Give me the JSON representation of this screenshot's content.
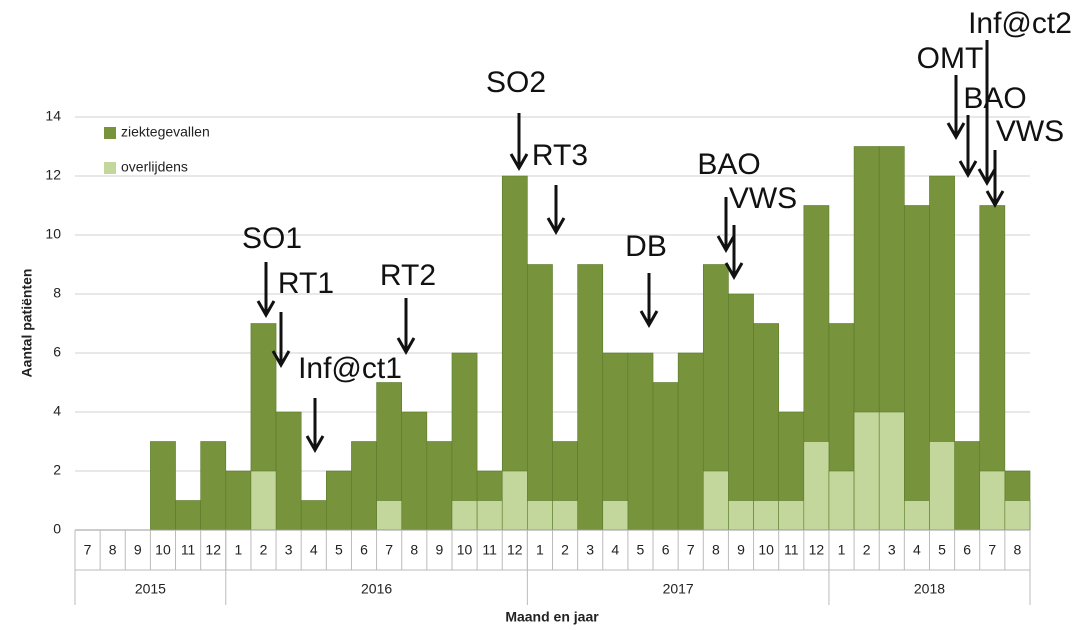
{
  "chart_data": {
    "type": "bar",
    "y_label": "Aantal patiënten",
    "x_label": "Maand en jaar",
    "categories": [
      "7",
      "8",
      "9",
      "10",
      "11",
      "12",
      "1",
      "2",
      "3",
      "4",
      "5",
      "6",
      "7",
      "8",
      "9",
      "10",
      "11",
      "12",
      "1",
      "2",
      "3",
      "4",
      "5",
      "6",
      "7",
      "8",
      "9",
      "10",
      "11",
      "12",
      "1",
      "2",
      "3",
      "4",
      "5",
      "6",
      "7",
      "8"
    ],
    "x_groups": [
      "2015",
      "2016",
      "2017",
      "2018"
    ],
    "series": [
      {
        "name": "ziektegevallen",
        "color": "#77933c",
        "values": [
          0,
          0,
          0,
          3,
          1,
          3,
          2,
          7,
          4,
          1,
          2,
          3,
          5,
          4,
          3,
          6,
          2,
          12,
          9,
          3,
          9,
          6,
          6,
          5,
          6,
          9,
          8,
          7,
          4,
          11,
          7,
          13,
          13,
          11,
          12,
          3,
          11,
          2
        ]
      },
      {
        "name": "overlijdens",
        "color": "#c3d69b",
        "values": [
          0,
          0,
          0,
          0,
          0,
          0,
          0,
          2,
          0,
          0,
          0,
          0,
          1,
          0,
          0,
          1,
          1,
          2,
          1,
          1,
          0,
          1,
          0,
          0,
          0,
          2,
          1,
          1,
          1,
          3,
          2,
          4,
          4,
          1,
          3,
          0,
          2,
          1
        ]
      }
    ],
    "ylim": [
      0,
      14
    ],
    "yticks": [
      0,
      2,
      4,
      6,
      8,
      10,
      12,
      14
    ],
    "grid": true,
    "annotations": [
      "SO1",
      "RT1",
      "Inf@ct1",
      "RT2",
      "SO2",
      "RT3",
      "DB",
      "BAO",
      "VWS",
      "OMT",
      "BAO",
      "VWS",
      "Inf@ct2"
    ]
  }
}
